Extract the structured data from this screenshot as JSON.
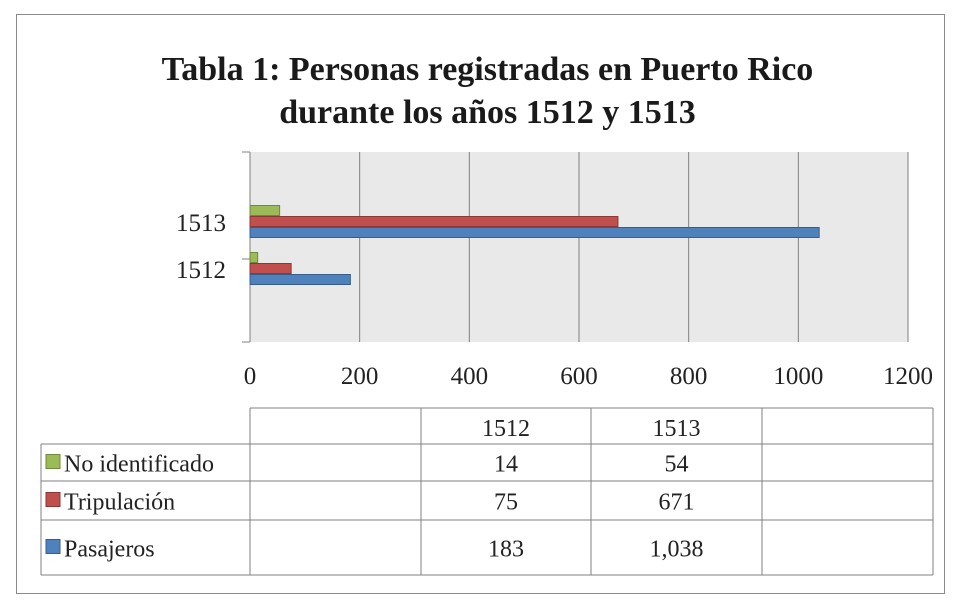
{
  "chart_data": {
    "type": "bar",
    "orientation": "horizontal",
    "title_line1": "Tabla 1: Personas registradas en Puerto Rico",
    "title_line2": "durante los años 1512 y 1513",
    "categories": [
      "1512",
      "1513"
    ],
    "xlim": [
      0,
      1200
    ],
    "x_ticks": [
      "0",
      "200",
      "400",
      "600",
      "800",
      "1000",
      "1200"
    ],
    "grid": true,
    "series": [
      {
        "name": "No identificado",
        "values": [
          14,
          54
        ],
        "color": "#9bbb59",
        "stroke": "#6f8a3a"
      },
      {
        "name": "Tripulación",
        "values": [
          75,
          671
        ],
        "color": "#c0504d",
        "stroke": "#8c3836"
      },
      {
        "name": "Pasajeros",
        "values": [
          183,
          1038
        ],
        "color": "#4f81bd",
        "stroke": "#385d8a"
      }
    ],
    "table": {
      "header": [
        "1512",
        "1513"
      ],
      "rows": [
        {
          "label": "No identificado",
          "cells": [
            "14",
            "54"
          ]
        },
        {
          "label": "Tripulación",
          "cells": [
            "75",
            "671"
          ]
        },
        {
          "label": "Pasajeros",
          "cells": [
            "183",
            "1,038"
          ]
        }
      ]
    }
  }
}
